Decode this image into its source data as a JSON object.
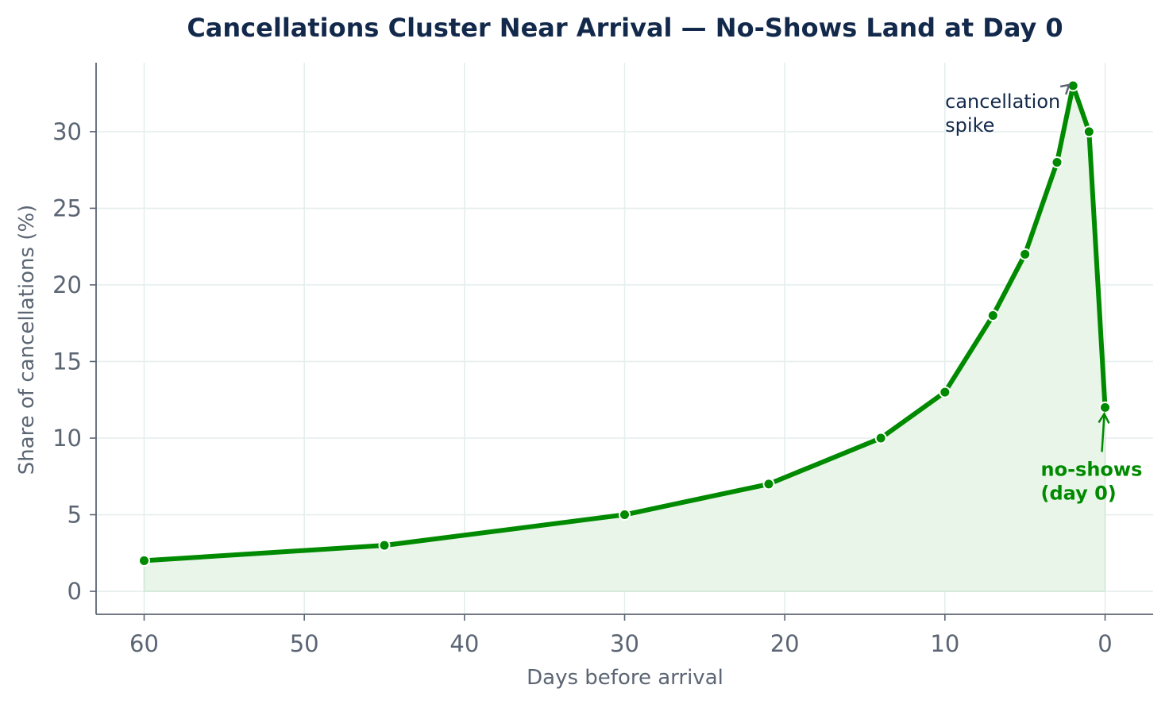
{
  "chart_data": {
    "type": "area",
    "title": "Cancellations Cluster Near Arrival — No-Shows Land at Day 0",
    "xlabel": "Days before arrival",
    "ylabel": "Share of cancellations (%)",
    "x_reversed": true,
    "xlim": [
      63,
      -3
    ],
    "ylim": [
      -1.5,
      34.5
    ],
    "xticks": [
      60,
      50,
      40,
      30,
      20,
      10,
      0
    ],
    "yticks": [
      0,
      5,
      10,
      15,
      20,
      25,
      30
    ],
    "grid": true,
    "legend": "none",
    "series": [
      {
        "x": [
          60,
          45,
          30,
          21,
          14,
          10,
          7,
          5,
          3,
          2,
          1,
          0
        ],
        "y": [
          2,
          3,
          5,
          7,
          10,
          13,
          18,
          22,
          28,
          33,
          30,
          12
        ],
        "color": "#008a00",
        "fill_color": "#e8f5e8"
      }
    ],
    "annotations": [
      {
        "text_lines": [
          "cancellation",
          "spike"
        ],
        "x": 2,
        "y": 33,
        "color": "#13294b"
      },
      {
        "text_lines": [
          "no-shows",
          "(day 0)"
        ],
        "x": 0,
        "y": 12,
        "color": "#008a00"
      }
    ]
  }
}
